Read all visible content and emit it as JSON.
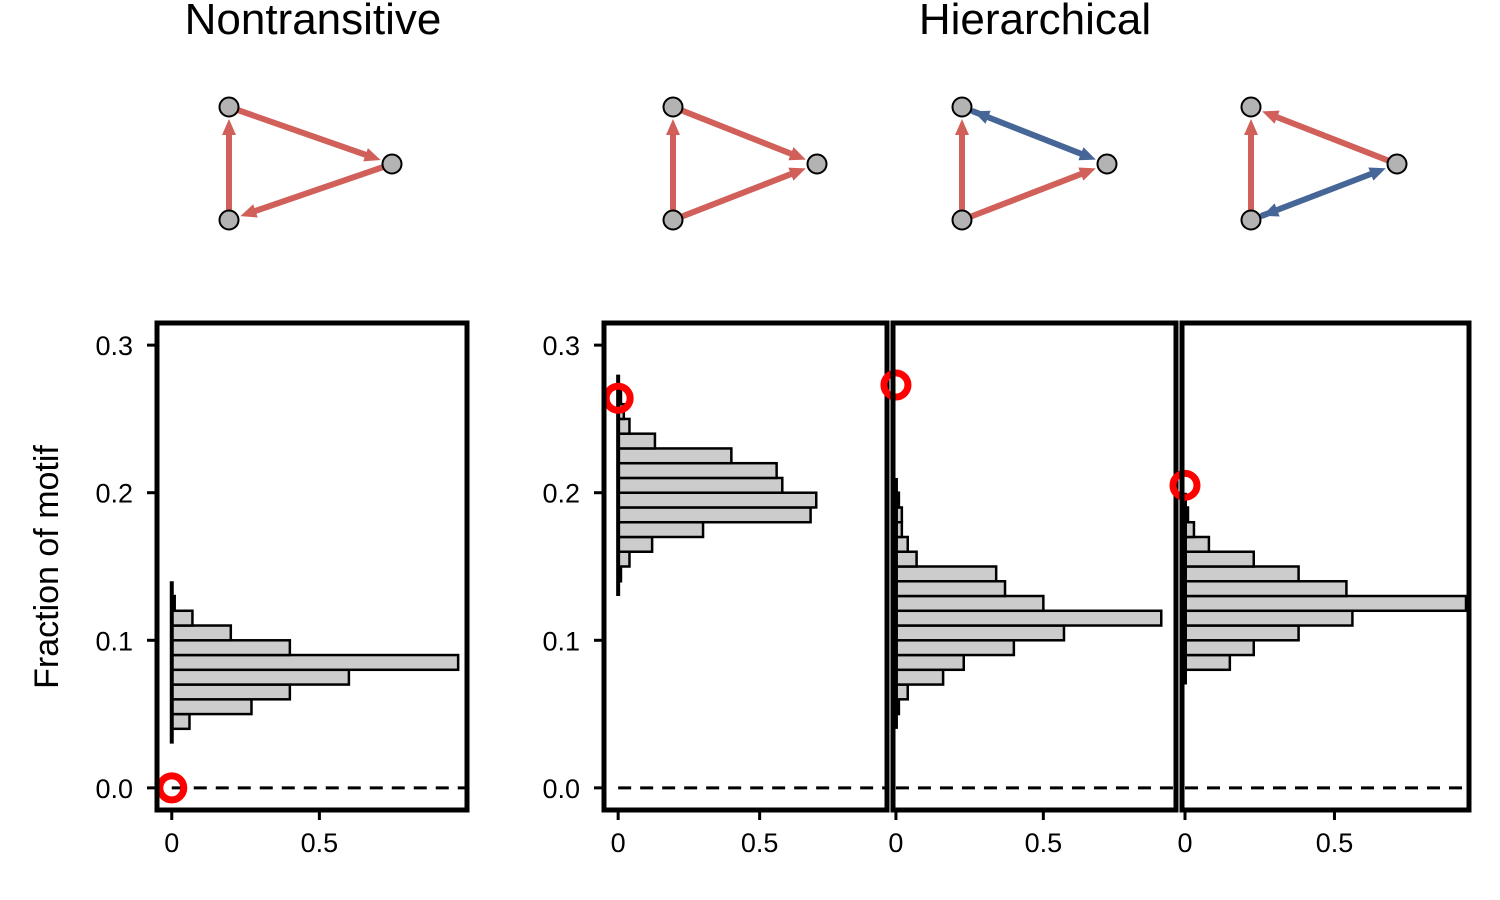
{
  "titles": {
    "left": "Nontransitive",
    "right": "Hierarchical"
  },
  "y_axis_label": "Fraction of motif",
  "y_ticks": [
    "0.0",
    "0.1",
    "0.2",
    "0.3"
  ],
  "x_ticks": [
    "0",
    "0.5"
  ],
  "colors": {
    "red_edge": "#d1605a",
    "blue_edge": "#466698",
    "node_fill": "#b3b3b3",
    "bar_fill": "#cccccc",
    "marker": "#ff0000"
  },
  "motifs": [
    {
      "name": "nontransitive-cycle",
      "edges": [
        {
          "from": "A",
          "to": "C",
          "color": "red",
          "double": false
        },
        {
          "from": "C",
          "to": "B",
          "color": "red",
          "double": false
        },
        {
          "from": "B",
          "to": "A",
          "color": "red",
          "double": false
        }
      ]
    },
    {
      "name": "hierarchical-1",
      "edges": [
        {
          "from": "B",
          "to": "A",
          "color": "red",
          "double": false
        },
        {
          "from": "A",
          "to": "C",
          "color": "red",
          "double": false
        },
        {
          "from": "B",
          "to": "C",
          "color": "red",
          "double": false
        }
      ]
    },
    {
      "name": "hierarchical-2",
      "edges": [
        {
          "from": "B",
          "to": "A",
          "color": "red",
          "double": false
        },
        {
          "from": "B",
          "to": "C",
          "color": "red",
          "double": false
        },
        {
          "from": "A",
          "to": "C",
          "color": "blue",
          "double": true
        }
      ]
    },
    {
      "name": "hierarchical-3",
      "edges": [
        {
          "from": "B",
          "to": "A",
          "color": "red",
          "double": false
        },
        {
          "from": "C",
          "to": "A",
          "color": "red",
          "double": false
        },
        {
          "from": "B",
          "to": "C",
          "color": "blue",
          "double": true
        }
      ]
    }
  ],
  "chart_data": [
    {
      "type": "histogram",
      "orientation": "horizontal",
      "group": "Nontransitive",
      "ylim": [
        -0.015,
        0.315
      ],
      "xlim": [
        -0.05,
        1.0
      ],
      "bin_width": 0.01,
      "bins": [
        {
          "y": 0.04,
          "count": 0.06
        },
        {
          "y": 0.05,
          "count": 0.27
        },
        {
          "y": 0.06,
          "count": 0.4
        },
        {
          "y": 0.07,
          "count": 0.6
        },
        {
          "y": 0.08,
          "count": 0.97
        },
        {
          "y": 0.09,
          "count": 0.4
        },
        {
          "y": 0.1,
          "count": 0.2
        },
        {
          "y": 0.11,
          "count": 0.07
        },
        {
          "y": 0.12,
          "count": 0.01
        }
      ],
      "observed": {
        "x": 0.0,
        "y": 0.0
      }
    },
    {
      "type": "histogram",
      "orientation": "horizontal",
      "group": "Hierarchical",
      "ylim": [
        -0.015,
        0.315
      ],
      "xlim": [
        -0.05,
        0.95
      ],
      "bin_width": 0.01,
      "bins": [
        {
          "y": 0.14,
          "count": 0.01
        },
        {
          "y": 0.15,
          "count": 0.04
        },
        {
          "y": 0.16,
          "count": 0.12
        },
        {
          "y": 0.17,
          "count": 0.3
        },
        {
          "y": 0.18,
          "count": 0.68
        },
        {
          "y": 0.19,
          "count": 0.7
        },
        {
          "y": 0.2,
          "count": 0.58
        },
        {
          "y": 0.21,
          "count": 0.56
        },
        {
          "y": 0.22,
          "count": 0.4
        },
        {
          "y": 0.23,
          "count": 0.13
        },
        {
          "y": 0.24,
          "count": 0.04
        },
        {
          "y": 0.25,
          "count": 0.02
        },
        {
          "y": 0.26,
          "count": 0.01
        }
      ],
      "observed": {
        "x": 0.0,
        "y": 0.264
      }
    },
    {
      "type": "histogram",
      "orientation": "horizontal",
      "group": "Hierarchical",
      "ylim": [
        -0.015,
        0.315
      ],
      "xlim": [
        -0.01,
        0.95
      ],
      "bin_width": 0.01,
      "bins": [
        {
          "y": 0.05,
          "count": 0.01
        },
        {
          "y": 0.06,
          "count": 0.04
        },
        {
          "y": 0.07,
          "count": 0.16
        },
        {
          "y": 0.08,
          "count": 0.23
        },
        {
          "y": 0.09,
          "count": 0.4
        },
        {
          "y": 0.1,
          "count": 0.57
        },
        {
          "y": 0.11,
          "count": 0.9
        },
        {
          "y": 0.12,
          "count": 0.5
        },
        {
          "y": 0.13,
          "count": 0.37
        },
        {
          "y": 0.14,
          "count": 0.34
        },
        {
          "y": 0.15,
          "count": 0.07
        },
        {
          "y": 0.16,
          "count": 0.04
        },
        {
          "y": 0.17,
          "count": 0.02
        },
        {
          "y": 0.18,
          "count": 0.02
        },
        {
          "y": 0.19,
          "count": 0.01
        }
      ],
      "observed": {
        "x": 0.0,
        "y": 0.273
      }
    },
    {
      "type": "histogram",
      "orientation": "horizontal",
      "group": "Hierarchical",
      "ylim": [
        -0.015,
        0.315
      ],
      "xlim": [
        -0.01,
        0.95
      ],
      "bin_width": 0.01,
      "bins": [
        {
          "y": 0.08,
          "count": 0.15
        },
        {
          "y": 0.09,
          "count": 0.23
        },
        {
          "y": 0.1,
          "count": 0.38
        },
        {
          "y": 0.11,
          "count": 0.56
        },
        {
          "y": 0.12,
          "count": 0.94
        },
        {
          "y": 0.13,
          "count": 0.54
        },
        {
          "y": 0.14,
          "count": 0.38
        },
        {
          "y": 0.15,
          "count": 0.23
        },
        {
          "y": 0.16,
          "count": 0.08
        },
        {
          "y": 0.17,
          "count": 0.03
        },
        {
          "y": 0.18,
          "count": 0.01
        }
      ],
      "observed": {
        "x": 0.0,
        "y": 0.205
      }
    }
  ]
}
